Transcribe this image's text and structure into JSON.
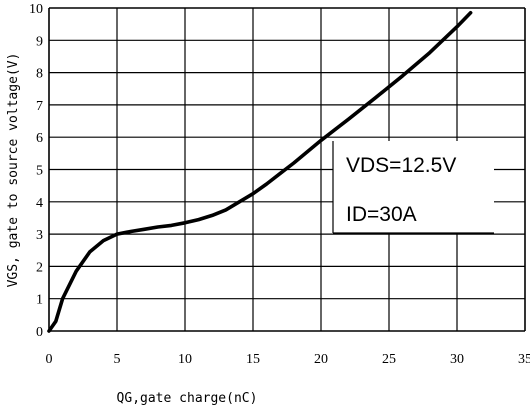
{
  "chart_data": {
    "type": "line",
    "title": "",
    "xlabel": "QG,gate charge(nC)",
    "ylabel": "VGS, gate to source voltage(V)",
    "xlim": [
      0,
      35
    ],
    "ylim": [
      0,
      10
    ],
    "xticks": [
      "0",
      "5",
      "10",
      "15",
      "20",
      "25",
      "30",
      "35"
    ],
    "yticks": [
      "0",
      "1",
      "2",
      "3",
      "4",
      "5",
      "6",
      "7",
      "8",
      "9",
      "10"
    ],
    "grid": true,
    "annotations": [
      "VDS=12.5V",
      "ID=30A"
    ],
    "series": [
      {
        "x": [
          0,
          0.5,
          1,
          2,
          3,
          4,
          5,
          6,
          7,
          8,
          9,
          10,
          11,
          12,
          13,
          14,
          15,
          16,
          17,
          18,
          20,
          22,
          24,
          26,
          28,
          30,
          31
        ],
        "y": [
          0,
          0.3,
          1.0,
          1.85,
          2.45,
          2.8,
          3.0,
          3.08,
          3.15,
          3.22,
          3.27,
          3.35,
          3.45,
          3.58,
          3.75,
          4.0,
          4.25,
          4.55,
          4.88,
          5.2,
          5.9,
          6.55,
          7.22,
          7.9,
          8.62,
          9.42,
          9.85
        ]
      }
    ]
  }
}
